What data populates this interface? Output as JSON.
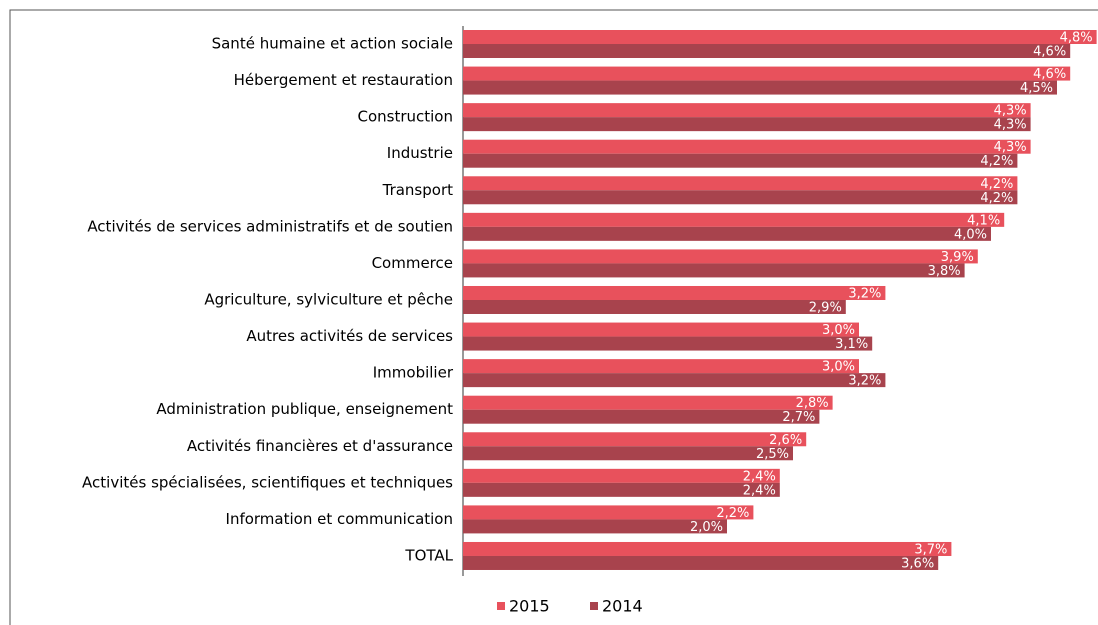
{
  "chart_data": {
    "type": "bar",
    "orientation": "horizontal",
    "categories": [
      "Santé humaine et action sociale",
      "Hébergement et restauration",
      "Construction",
      "Industrie",
      "Transport",
      "Activités de services administratifs et de soutien",
      "Commerce",
      "Agriculture, sylviculture et pêche",
      "Autres activités de services",
      "Immobilier",
      "Administration publique, enseignement",
      "Activités financières et d'assurance",
      "Activités spécialisées, scientifiques et techniques",
      "Information et communication",
      "TOTAL"
    ],
    "series": [
      {
        "name": "2015",
        "color": "#e8515c",
        "values": [
          4.8,
          4.6,
          4.3,
          4.3,
          4.2,
          4.1,
          3.9,
          3.2,
          3.0,
          3.0,
          2.8,
          2.6,
          2.4,
          2.2,
          3.7
        ],
        "value_labels": [
          "4,8%",
          "4,6%",
          "4,3%",
          "4,3%",
          "4,2%",
          "4,1%",
          "3,9%",
          "3,2%",
          "3,0%",
          "3,0%",
          "2,8%",
          "2,6%",
          "2,4%",
          "2,2%",
          "3,7%"
        ]
      },
      {
        "name": "2014",
        "color": "#a8434d",
        "values": [
          4.6,
          4.5,
          4.3,
          4.2,
          4.2,
          4.0,
          3.8,
          2.9,
          3.1,
          3.2,
          2.7,
          2.5,
          2.4,
          2.0,
          3.6
        ],
        "value_labels": [
          "4,6%",
          "4,5%",
          "4,3%",
          "4,2%",
          "4,2%",
          "4,0%",
          "3,8%",
          "2,9%",
          "3,1%",
          "3,2%",
          "2,7%",
          "2,5%",
          "2,4%",
          "2,0%",
          "3,6%"
        ]
      }
    ],
    "legend": "bottom"
  }
}
